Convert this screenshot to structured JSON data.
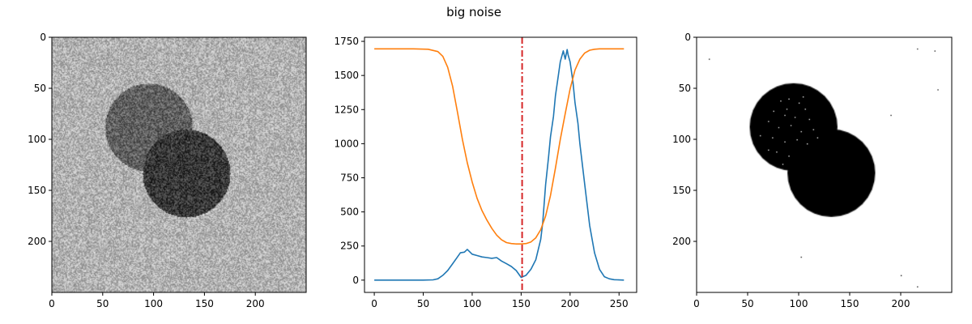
{
  "figure": {
    "title": "big noise"
  },
  "chart_data": [
    {
      "type": "heatmap",
      "panel": "noisy-image",
      "colormap": "gray",
      "xlim": [
        0,
        250
      ],
      "ylim": [
        250,
        0
      ],
      "xticks": [
        0,
        50,
        100,
        150,
        200
      ],
      "yticks": [
        0,
        50,
        100,
        150,
        200
      ],
      "background_level": 0.7,
      "noise_amplitude": 0.18,
      "circles": [
        {
          "cx": 95,
          "cy": 88,
          "r": 43,
          "level": 0.38
        },
        {
          "cx": 132,
          "cy": 133,
          "r": 43,
          "level": 0.22
        }
      ]
    },
    {
      "type": "line",
      "panel": "histogram",
      "xlim": [
        -10,
        268
      ],
      "ylim": [
        -90,
        1780
      ],
      "xticks": [
        0,
        50,
        100,
        150,
        200,
        250
      ],
      "yticks": [
        0,
        250,
        500,
        750,
        1000,
        1250,
        1500,
        1750
      ],
      "threshold": 151,
      "grid": false,
      "series": [
        {
          "color": "#1f77b4",
          "x": [
            0,
            50,
            60,
            65,
            70,
            75,
            80,
            85,
            88,
            92,
            95,
            100,
            105,
            110,
            115,
            120,
            125,
            130,
            135,
            140,
            145,
            150,
            155,
            160,
            165,
            170,
            172,
            175,
            178,
            180,
            183,
            185,
            188,
            190,
            193,
            195,
            197,
            198,
            200,
            203,
            205,
            208,
            210,
            215,
            220,
            225,
            230,
            235,
            240,
            245,
            255
          ],
          "y": [
            0,
            0,
            2,
            10,
            35,
            70,
            120,
            170,
            200,
            205,
            225,
            190,
            180,
            170,
            165,
            160,
            165,
            140,
            120,
            100,
            70,
            20,
            35,
            80,
            150,
            300,
            420,
            700,
            900,
            1050,
            1200,
            1350,
            1500,
            1600,
            1680,
            1620,
            1690,
            1650,
            1600,
            1450,
            1300,
            1150,
            1000,
            700,
            400,
            200,
            80,
            25,
            10,
            3,
            0
          ]
        },
        {
          "color": "#ff7f0e",
          "x": [
            0,
            20,
            40,
            55,
            65,
            70,
            75,
            80,
            85,
            90,
            95,
            100,
            105,
            110,
            115,
            120,
            125,
            130,
            135,
            140,
            145,
            150,
            155,
            160,
            165,
            170,
            175,
            180,
            185,
            190,
            195,
            200,
            205,
            210,
            215,
            220,
            225,
            230,
            240,
            255
          ],
          "y": [
            1695,
            1695,
            1695,
            1692,
            1675,
            1640,
            1560,
            1420,
            1230,
            1030,
            860,
            720,
            600,
            510,
            440,
            380,
            330,
            295,
            275,
            268,
            265,
            265,
            268,
            280,
            310,
            370,
            470,
            620,
            820,
            1030,
            1220,
            1400,
            1540,
            1620,
            1665,
            1685,
            1692,
            1695,
            1695,
            1695
          ]
        }
      ]
    },
    {
      "type": "heatmap",
      "panel": "thresholded-image",
      "colormap": "binary",
      "xlim": [
        0,
        250
      ],
      "ylim": [
        250,
        0
      ],
      "xticks": [
        0,
        50,
        100,
        150,
        200
      ],
      "yticks": [
        0,
        50,
        100,
        150,
        200
      ],
      "circles": [
        {
          "cx": 95,
          "cy": 88,
          "r": 43,
          "level": 0
        },
        {
          "cx": 132,
          "cy": 133,
          "r": 43,
          "level": 0
        }
      ],
      "speckles_inside": [
        [
          82,
          62
        ],
        [
          90,
          60
        ],
        [
          100,
          64
        ],
        [
          106,
          70
        ],
        [
          75,
          72
        ],
        [
          86,
          76
        ],
        [
          96,
          78
        ],
        [
          110,
          80
        ],
        [
          70,
          82
        ],
        [
          80,
          88
        ],
        [
          92,
          86
        ],
        [
          102,
          92
        ],
        [
          114,
          90
        ],
        [
          74,
          98
        ],
        [
          86,
          102
        ],
        [
          98,
          100
        ],
        [
          108,
          104
        ],
        [
          78,
          112
        ],
        [
          90,
          116
        ],
        [
          84,
          124
        ],
        [
          70,
          110
        ],
        [
          118,
          98
        ],
        [
          62,
          96
        ],
        [
          88,
          70
        ],
        [
          104,
          58
        ]
      ],
      "speckles_outside": [
        [
          12,
          21
        ],
        [
          216,
          11
        ],
        [
          233,
          13
        ],
        [
          236,
          51
        ],
        [
          190,
          76
        ],
        [
          102,
          215
        ],
        [
          200,
          233
        ],
        [
          216,
          244
        ]
      ]
    }
  ]
}
